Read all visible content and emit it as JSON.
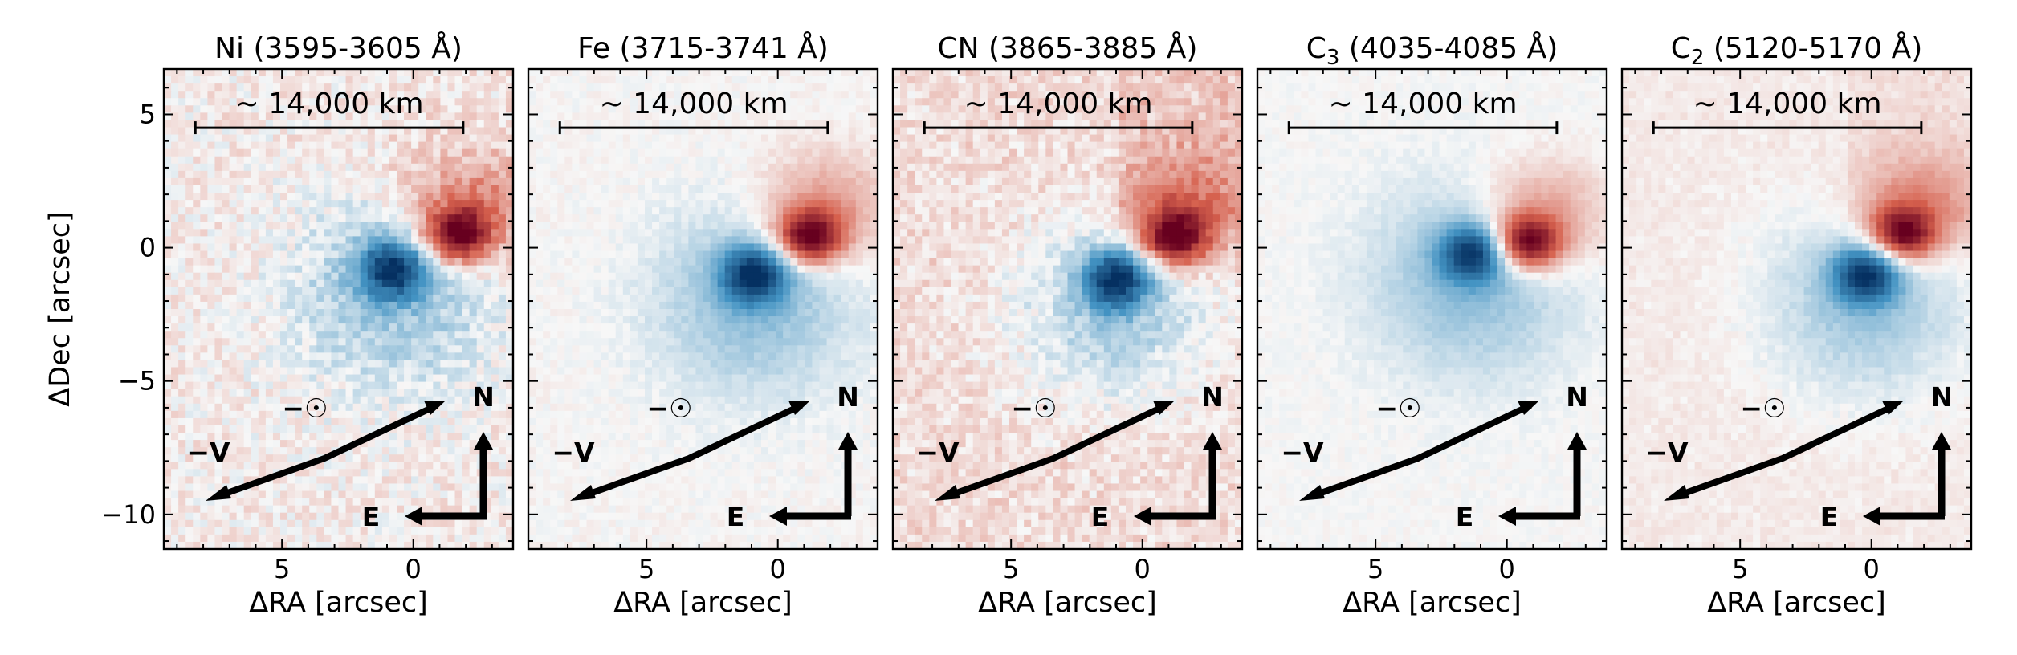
{
  "chart_data": {
    "type": "heatmap",
    "figure_description": "Five-panel residual emission maps in RA/Dec offsets",
    "colormap": {
      "name": "diverging blue-white-red",
      "negative_color": "#053061",
      "mid_color": "#f7f7f7",
      "positive_color": "#67001f",
      "range": [
        -1,
        1
      ]
    },
    "axes": {
      "xlabel": "ΔRA [arcsec]",
      "ylabel": "ΔDec [arcsec]",
      "xlim": [
        9.5,
        -3.8
      ],
      "ylim": [
        -11.3,
        6.7
      ],
      "xticks": [
        5,
        0
      ],
      "xtick_labels": [
        "5",
        "0"
      ],
      "yticks": [
        5,
        0,
        -5,
        -10
      ],
      "ytick_labels": [
        "5",
        "0",
        "−5",
        "−10"
      ],
      "x_minor_step": 1,
      "y_minor_step": 1,
      "grid": false
    },
    "scale_bar": {
      "label": "~ 14,000 km",
      "x_start": 8.3,
      "x_end": -1.9,
      "y": 4.5
    },
    "compass": {
      "north_label": "N",
      "east_label": "E",
      "sun_label": "−☉",
      "velocity_label": "−V"
    },
    "panels": [
      {
        "title": "Ni (3595-3605 Å)",
        "title_main": "Ni (3595-3605 Å)",
        "title_sub": "",
        "title_rest": "",
        "background_level": 0.05,
        "noise_level": 0.1,
        "red_peak": [
          -1.7,
          0.5
        ],
        "red_amplitude": 0.95,
        "blue_peak": [
          0.8,
          -0.8
        ],
        "blue_amplitude": -0.85
      },
      {
        "title": "Fe (3715-3741 Å)",
        "title_main": "Fe (3715-3741 Å)",
        "title_sub": "",
        "title_rest": "",
        "background_level": 0.01,
        "noise_level": 0.04,
        "red_peak": [
          -1.2,
          0.4
        ],
        "red_amplitude": 0.95,
        "blue_peak": [
          0.9,
          -1.0
        ],
        "blue_amplitude": -0.85
      },
      {
        "title": "CN (3865-3885 Å)",
        "title_main": "CN (3865-3885 Å)",
        "title_sub": "",
        "title_rest": "",
        "background_level": 0.12,
        "noise_level": 0.08,
        "red_peak": [
          -1.2,
          0.4
        ],
        "red_amplitude": 0.95,
        "blue_peak": [
          1.0,
          -1.2
        ],
        "blue_amplitude": -0.9
      },
      {
        "title": "C3 (4035-4085 Å)",
        "title_main": "C",
        "title_sub": "3",
        "title_rest": " (4035-4085 Å)",
        "background_level": 0.0,
        "noise_level": 0.03,
        "red_peak": [
          -0.8,
          0.2
        ],
        "red_amplitude": 0.95,
        "blue_peak": [
          1.3,
          -0.2
        ],
        "blue_amplitude": -0.8
      },
      {
        "title": "C2 (5120-5170 Å)",
        "title_main": "C",
        "title_sub": "2",
        "title_rest": " (5120-5170 Å)",
        "background_level": 0.06,
        "noise_level": 0.03,
        "red_peak": [
          -1.2,
          0.5
        ],
        "red_amplitude": 0.9,
        "blue_peak": [
          0.2,
          -1.0
        ],
        "blue_amplitude": -0.85
      }
    ]
  }
}
